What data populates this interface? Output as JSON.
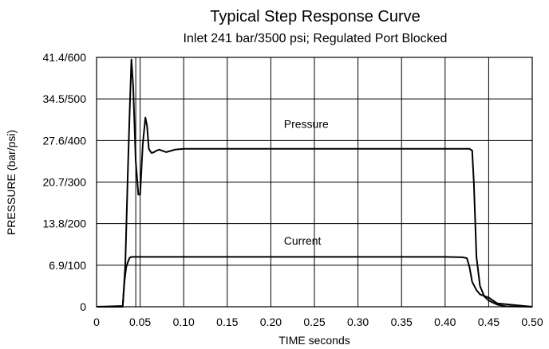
{
  "chart_data": {
    "type": "line",
    "title": "Typical Step Response Curve",
    "subtitle": "Inlet 241 bar/3500 psi; Regulated Port Blocked",
    "xlabel": "TIME seconds",
    "ylabel": "PRESSURE (bar/psi)",
    "xlim": [
      0,
      0.5
    ],
    "ylim": [
      0,
      600
    ],
    "grid": true,
    "x_ticks": [
      0,
      0.05,
      0.1,
      0.15,
      0.2,
      0.25,
      0.3,
      0.35,
      0.4,
      0.45,
      0.5
    ],
    "x_tick_labels": [
      "0",
      "0.05",
      "0.10",
      "0.15",
      "0.20",
      "0.25",
      "0.30",
      "0.35",
      "0.40",
      "0.45",
      "0.50"
    ],
    "y_ticks": [
      0,
      100,
      200,
      300,
      400,
      500,
      600
    ],
    "y_tick_labels": [
      "0",
      "6.9/100",
      "13.8/200",
      "20.7/300",
      "27.6/400",
      "34.5/500",
      "41.4/600"
    ],
    "series": [
      {
        "name": "Pressure",
        "label_at": [
          0.215,
          430
        ],
        "x": [
          0,
          0.03,
          0.033,
          0.036,
          0.038,
          0.04,
          0.042,
          0.045,
          0.048,
          0.05,
          0.053,
          0.056,
          0.058,
          0.06,
          0.063,
          0.066,
          0.069,
          0.072,
          0.076,
          0.08,
          0.085,
          0.09,
          0.1,
          0.2,
          0.3,
          0.4,
          0.428,
          0.431,
          0.433,
          0.436,
          0.44,
          0.445,
          0.45,
          0.46,
          0.47,
          0.5
        ],
        "values": [
          0,
          0,
          100,
          330,
          470,
          595,
          530,
          350,
          270,
          270,
          390,
          455,
          435,
          380,
          370,
          372,
          376,
          378,
          375,
          372,
          375,
          378,
          380,
          380,
          380,
          380,
          380,
          376,
          300,
          120,
          50,
          25,
          15,
          5,
          1,
          0
        ]
      },
      {
        "name": "Current",
        "label_at": [
          0.215,
          150
        ],
        "x": [
          0,
          0.03,
          0.032,
          0.034,
          0.036,
          0.038,
          0.04,
          0.045,
          0.1,
          0.2,
          0.3,
          0.4,
          0.42,
          0.425,
          0.428,
          0.431,
          0.436,
          0.44,
          0.45,
          0.46,
          0.5
        ],
        "values": [
          0,
          2,
          60,
          95,
          108,
          118,
          120,
          120,
          120,
          120,
          120,
          120,
          119,
          117,
          95,
          60,
          40,
          30,
          22,
          8,
          0
        ]
      }
    ],
    "annotations": [
      {
        "text": "Pressure",
        "series": "Pressure"
      },
      {
        "text": "Current",
        "series": "Current"
      }
    ],
    "extra_vertical_line_x": 0.045
  }
}
